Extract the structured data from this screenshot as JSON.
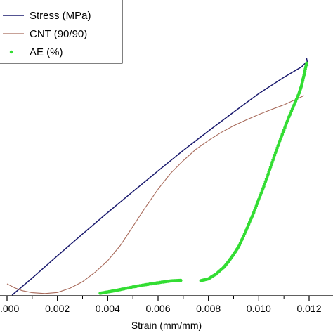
{
  "chart_data": {
    "type": "line",
    "xlabel": "Strain (mm/mm)",
    "ylabel": "",
    "xlim": [
      0,
      0.012
    ],
    "x_ticks": [
      0,
      0.002,
      0.004,
      0.006,
      0.008,
      0.01,
      0.012
    ],
    "x_tick_labels": [
      ".000",
      "0.002",
      "0.004",
      "0.006",
      "0.008",
      "0.010",
      "0.012"
    ],
    "ylim": [
      0,
      100
    ],
    "grid": false,
    "legend_position": "top-left",
    "legend": [
      {
        "label": "Stress (MPa)",
        "color": "#1a1a6e",
        "kind": "line"
      },
      {
        "label": "CNT (90/90)",
        "color": "#a86a5a",
        "kind": "line"
      },
      {
        "label": "AE (%)",
        "color": "#33dd33",
        "kind": "point"
      }
    ],
    "series": [
      {
        "name": "Stress (MPa)",
        "color": "#1a1a6e",
        "style": "line",
        "x": [
          0.0002,
          0.001,
          0.002,
          0.003,
          0.004,
          0.005,
          0.006,
          0.007,
          0.008,
          0.009,
          0.01,
          0.011,
          0.0117,
          0.0119
        ],
        "y": [
          0.0,
          6.5,
          15.0,
          23.3,
          31.5,
          39.5,
          47.4,
          55.2,
          62.6,
          69.8,
          76.9,
          83.1,
          87.1,
          89.0
        ]
      },
      {
        "name": "CNT (90/90)",
        "color": "#a86a5a",
        "style": "line",
        "x": [
          0.0,
          0.0003,
          0.0006,
          0.001,
          0.0015,
          0.002,
          0.0025,
          0.003,
          0.0035,
          0.004,
          0.0045,
          0.005,
          0.0055,
          0.006,
          0.0065,
          0.007,
          0.0075,
          0.008,
          0.0085,
          0.009,
          0.0095,
          0.01,
          0.0105,
          0.011,
          0.0115,
          0.0118
        ],
        "y": [
          4.3,
          2.8,
          1.7,
          0.9,
          0.6,
          1.0,
          2.6,
          5.1,
          8.7,
          13.1,
          18.9,
          26.2,
          33.5,
          40.4,
          46.5,
          51.3,
          55.6,
          59.0,
          62.0,
          64.6,
          66.8,
          68.9,
          70.8,
          72.6,
          74.8,
          76.1
        ]
      },
      {
        "name": "AE (%)",
        "color": "#33dd33",
        "style": "point",
        "x": [
          0.0037,
          0.004,
          0.0043,
          0.0046,
          0.005,
          0.0054,
          0.0058,
          0.0062,
          0.0065,
          0.0067,
          0.0069,
          0.0077,
          0.008,
          0.0083,
          0.0086,
          0.0088,
          0.009,
          0.0092,
          0.0094,
          0.0096,
          0.0098,
          0.01,
          0.0102,
          0.0104,
          0.0106,
          0.0108,
          0.011,
          0.0112,
          0.0114,
          0.0116,
          0.0117,
          0.0118,
          0.0119
        ],
        "y": [
          0.7,
          1.2,
          1.7,
          2.3,
          3.1,
          3.8,
          4.4,
          5.0,
          5.4,
          5.5,
          5.6,
          5.5,
          6.2,
          8.0,
          10.5,
          12.8,
          15.5,
          18.5,
          22.5,
          27.0,
          31.5,
          36.5,
          41.5,
          47.0,
          52.5,
          58.0,
          63.0,
          68.0,
          72.5,
          77.0,
          80.0,
          84.0,
          88.5
        ]
      }
    ]
  }
}
